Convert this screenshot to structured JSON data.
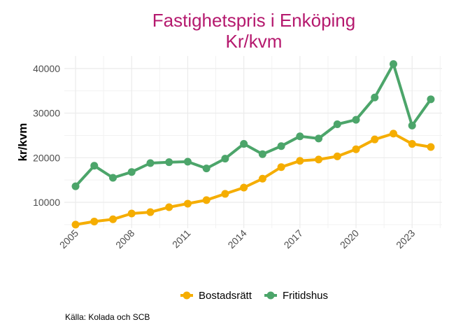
{
  "chart_data": {
    "type": "line",
    "title": "Fastighetspris i Enköping",
    "subtitle": "Kr/kvm",
    "xlabel": "",
    "ylabel": "kr/kvm",
    "x": [
      2005,
      2006,
      2007,
      2008,
      2009,
      2010,
      2011,
      2012,
      2013,
      2014,
      2015,
      2016,
      2017,
      2018,
      2019,
      2020,
      2021,
      2022,
      2023,
      2024
    ],
    "x_tick_labels": [
      "2005",
      "2008",
      "2011",
      "2014",
      "2017",
      "2020",
      "2023"
    ],
    "x_ticks": [
      2005,
      2008,
      2011,
      2014,
      2017,
      2020,
      2023
    ],
    "y_ticks": [
      10000,
      20000,
      30000,
      40000
    ],
    "y_tick_labels": [
      "10000",
      "20000",
      "30000",
      "40000"
    ],
    "xlim": [
      2004.4,
      2024.6
    ],
    "ylim": [
      4200,
      42800
    ],
    "grid": true,
    "legend_position": "bottom",
    "series": [
      {
        "name": "Bostadsrätt",
        "color": "#f5ad00",
        "values": [
          5000,
          5700,
          6200,
          7500,
          7800,
          8900,
          9700,
          10500,
          11900,
          13300,
          15300,
          17900,
          19300,
          19600,
          20300,
          21900,
          24100,
          25400,
          23100,
          22400
        ]
      },
      {
        "name": "Fritidshus",
        "color": "#4ca56a",
        "values": [
          13600,
          18200,
          15500,
          16800,
          18800,
          19000,
          19100,
          17600,
          19800,
          23100,
          20800,
          22600,
          24800,
          24300,
          27500,
          28500,
          33500,
          41000,
          27200,
          33100
        ]
      }
    ],
    "caption": "Källa: Kolada och SCB"
  }
}
